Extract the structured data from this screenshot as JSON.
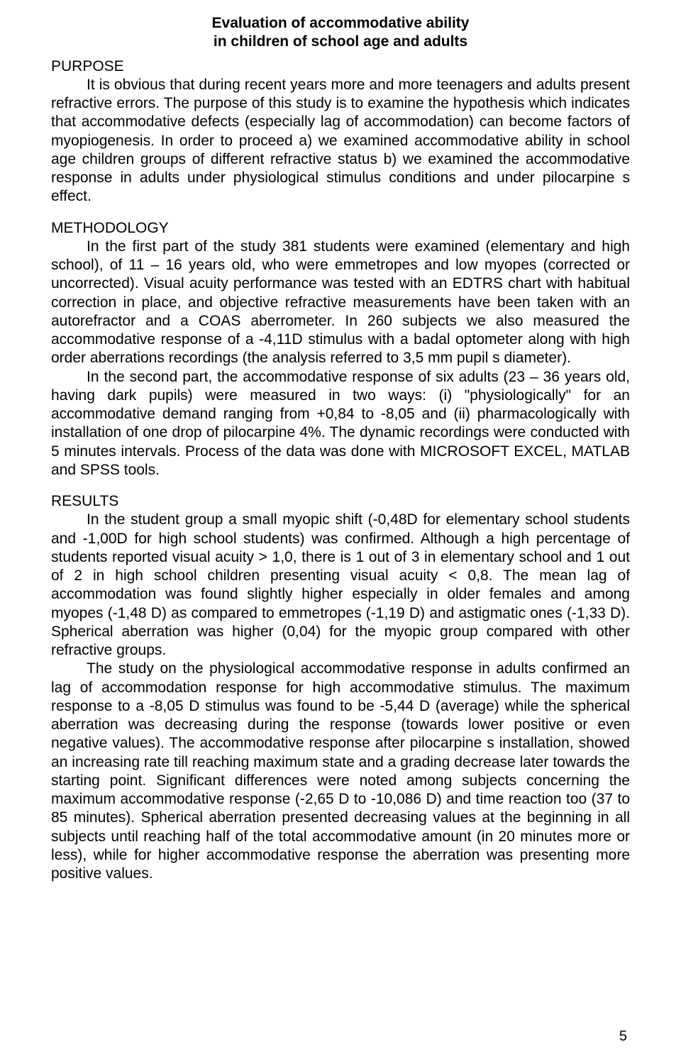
{
  "title_line1": "Evaluation of accommodative ability",
  "title_line2": "in children of school age and adults",
  "purpose_heading": "PURPOSE",
  "purpose_body": "It is obvious that during recent years more and more teenagers and adults present refractive errors. The purpose of this study is to examine the hypothesis which indicates that accommodative defects (especially lag of accommodation) can become factors of myopiogenesis. In order to proceed a) we examined accommodative ability in school age children groups of different refractive status b) we examined the accommodative response in adults under physiological stimulus conditions and under pilocarpine s effect.",
  "methodology_heading": "METHODOLOGY",
  "methodology_p1": "In the first part of the study 381 students were examined (elementary and high school), of 11 – 16 years old, who were emmetropes and low myopes (corrected or uncorrected). Visual acuity performance was tested with an EDTRS chart with habitual correction in place, and objective refractive measurements have been taken with an autorefractor and a COAS aberrometer. In 260 subjects we also measured the accommodative response of a -4,11D stimulus with a badal optometer along with high order aberrations recordings (the analysis referred to 3,5 mm pupil s diameter).",
  "methodology_p2": "In the second part, the accommodative response of six adults (23 – 36 years old, having dark pupils) were measured in two ways: (i) \"physiologically\" for an accommodative demand ranging from +0,84 to -8,05 and (ii) pharmacologically with installation of one drop of pilocarpine 4%. The dynamic recordings were conducted with 5 minutes intervals. Process of the data was done with MICROSOFT EXCEL, MATLAB and SPSS tools.",
  "results_heading": "RESULTS",
  "results_p1": "In the student group a small myopic shift (-0,48D for elementary school students and -1,00D for high school students) was confirmed. Although a high percentage of students reported visual acuity > 1,0, there is 1 out of 3 in elementary school and 1 out of 2 in high school children presenting visual acuity < 0,8. The mean lag of accommodation was found slightly higher especially in older females and among myopes (-1,48 D) as compared to emmetropes (-1,19 D) and astigmatic ones (-1,33 D). Spherical aberration was higher (0,04) for the myopic group compared with other refractive groups.",
  "results_p2": "The study on the physiological accommodative response in adults confirmed an lag of accommodation response for high accommodative stimulus. The maximum response to a -8,05 D stimulus was found to be -5,44 D (average) while the spherical aberration was decreasing during the response (towards lower positive or even negative values). The accommodative response after pilocarpine s installation, showed an increasing rate till reaching maximum state and a grading decrease later towards the starting point. Significant differences were noted among subjects concerning the maximum accommodative response (-2,65 D to -10,086 D) and time reaction too (37 to 85 minutes). Spherical aberration presented decreasing values at the beginning in all subjects until reaching half of the total accommodative amount (in 20 minutes more or less), while for higher accommodative response the aberration was presenting more positive values.",
  "page_number": "5"
}
